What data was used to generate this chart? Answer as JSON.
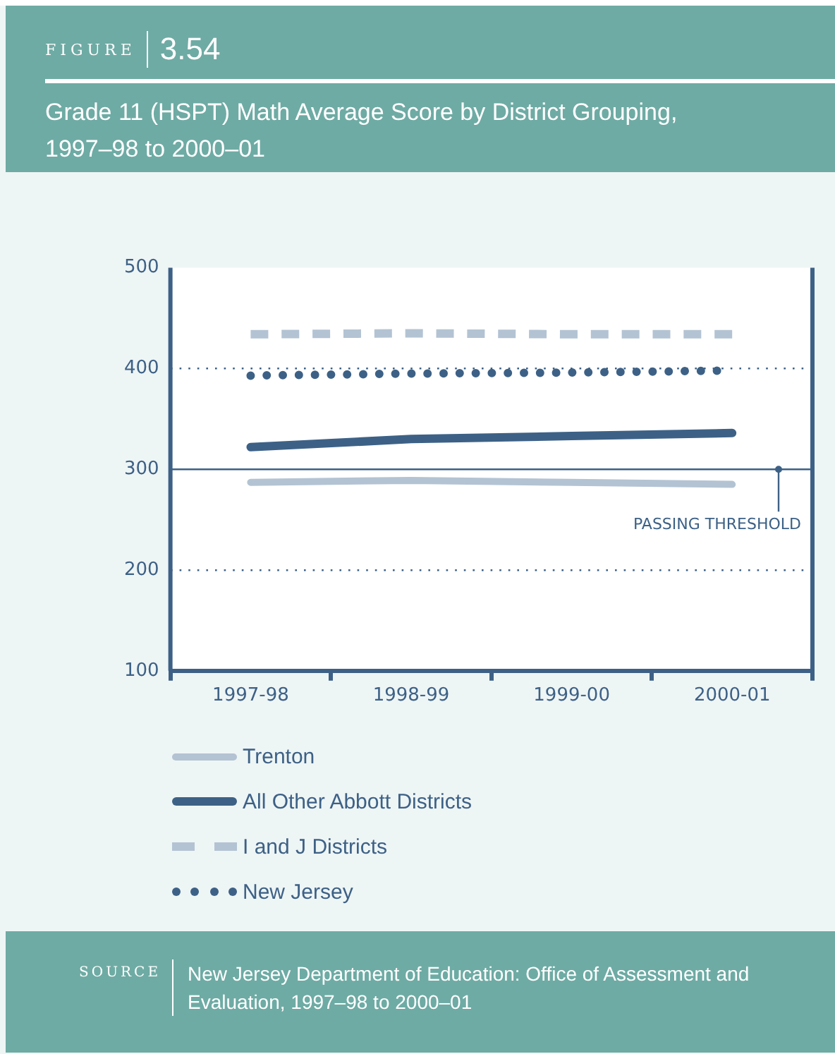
{
  "chart_data": {
    "type": "line",
    "title": "Grade 11 (HSPT) Math Average Score by District Grouping, 1997–98 to 2000–01",
    "annotations": [
      "FIGURE",
      "3.54",
      "SOURCE",
      "New Jersey Department of Education: Office of Assessment and Evaluation, 1997–98 to 2000–01"
    ],
    "categories": [
      "1997-98",
      "1998-99",
      "1999-00",
      "2000-01"
    ],
    "series": [
      {
        "name": "Trenton",
        "color": "#b3c3d3",
        "line_style": "solid",
        "values": [
          287,
          289,
          287,
          285
        ]
      },
      {
        "name": "All Other Abbott Districts",
        "color": "#3d6186",
        "line_style": "solid",
        "values": [
          322,
          330,
          333,
          336
        ]
      },
      {
        "name": "I and J Districts",
        "color": "#b3c3d3",
        "line_style": "dashed",
        "values": [
          434,
          435,
          434,
          434
        ]
      },
      {
        "name": "New Jersey",
        "color": "#3d6186",
        "line_style": "dotted",
        "values": [
          393,
          395,
          396,
          398
        ]
      }
    ],
    "ylim": [
      100,
      500
    ],
    "yticks": [
      100,
      200,
      300,
      400,
      500
    ],
    "grid": "y",
    "legend": "bottom",
    "marker": "none",
    "ref_lines": [
      {
        "axis": "y",
        "value": 300,
        "label": "PASSING THRESHOLD",
        "color": "#3d6186",
        "line_style": "solid"
      }
    ]
  }
}
